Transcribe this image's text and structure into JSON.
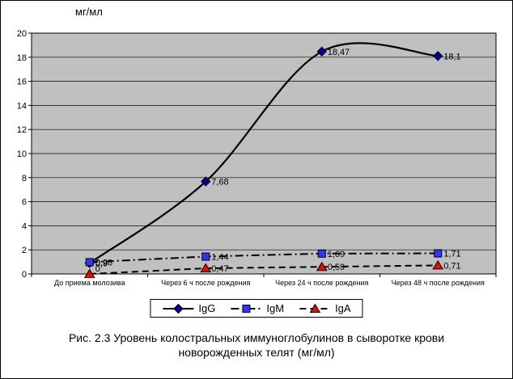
{
  "figure": {
    "caption_line1": "Рис. 2.3 Уровень колостральных иммуноглобулинов в сыворотке крови",
    "caption_line2": "новорожденных телят (мг/мл)"
  },
  "chart_data": {
    "type": "line",
    "title": "мг/мл",
    "categories": [
      "До приема молозива",
      "Через 6 ч после рождения",
      "Через 24 ч после рождения",
      "Через 48 ч после рождения"
    ],
    "series": [
      {
        "name": "IgG",
        "values": [
          0.9,
          7.68,
          18.47,
          18.1
        ],
        "labels": [
          "0,9",
          "7,68",
          "18,47",
          "18,1"
        ],
        "marker": "diamond",
        "marker_color": "#000099",
        "line_style": "solid",
        "smooth": true
      },
      {
        "name": "IgM",
        "values": [
          0.98,
          1.44,
          1.69,
          1.71
        ],
        "labels": [
          "0,98",
          "1,44",
          "1,69",
          "1,71"
        ],
        "marker": "square",
        "marker_color": "#3333FF",
        "line_style": "dashdot",
        "smooth": false
      },
      {
        "name": "IgA",
        "values": [
          0,
          0.47,
          0.59,
          0.71
        ],
        "labels": [
          "0",
          "0,47",
          "0,59",
          "0,71"
        ],
        "marker": "triangle",
        "marker_color": "#FF0000",
        "line_style": "dash",
        "smooth": false
      }
    ],
    "ylim": [
      0,
      20
    ],
    "ytick_step": 2,
    "line_color": "#000000",
    "plot_bg": "#C0C0C0",
    "grid": true,
    "legend_position": "bottom"
  }
}
